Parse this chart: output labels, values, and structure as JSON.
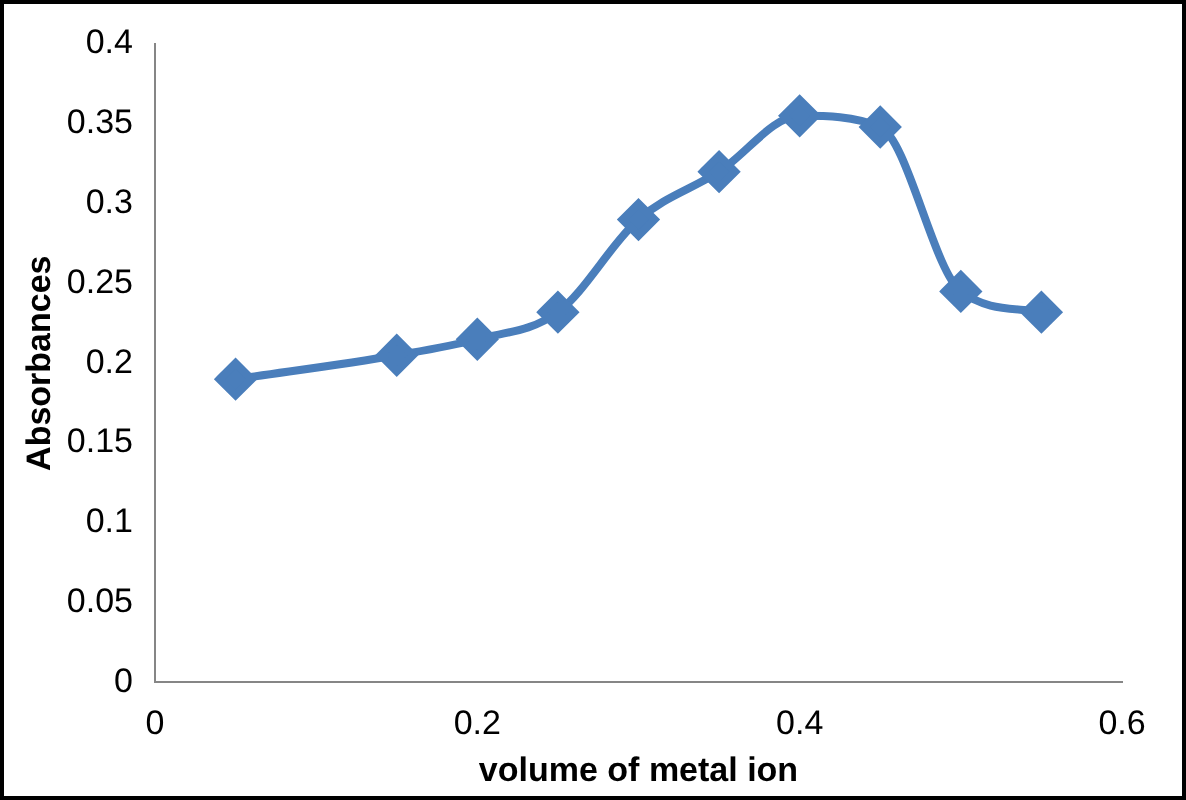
{
  "chart_data": {
    "type": "line",
    "xlabel": "volume of metal ion",
    "ylabel": "Absorbances",
    "x": [
      0.05,
      0.15,
      0.2,
      0.25,
      0.3,
      0.35,
      0.4,
      0.45,
      0.5,
      0.55
    ],
    "series": [
      {
        "color": "#4a7ebb",
        "values": [
          0.19,
          0.205,
          0.215,
          0.232,
          0.29,
          0.32,
          0.355,
          0.348,
          0.245,
          0.232
        ]
      }
    ],
    "xlim": [
      0,
      0.6
    ],
    "xticks": [
      0,
      0.2,
      0.4,
      0.6
    ],
    "ylim": [
      0,
      0.4
    ],
    "yticks": [
      0,
      0.05,
      0.1,
      0.15,
      0.2,
      0.25,
      0.3,
      0.35,
      0.4
    ],
    "grid": false,
    "legend": false,
    "marker": "diamond",
    "line_style": "solid"
  }
}
